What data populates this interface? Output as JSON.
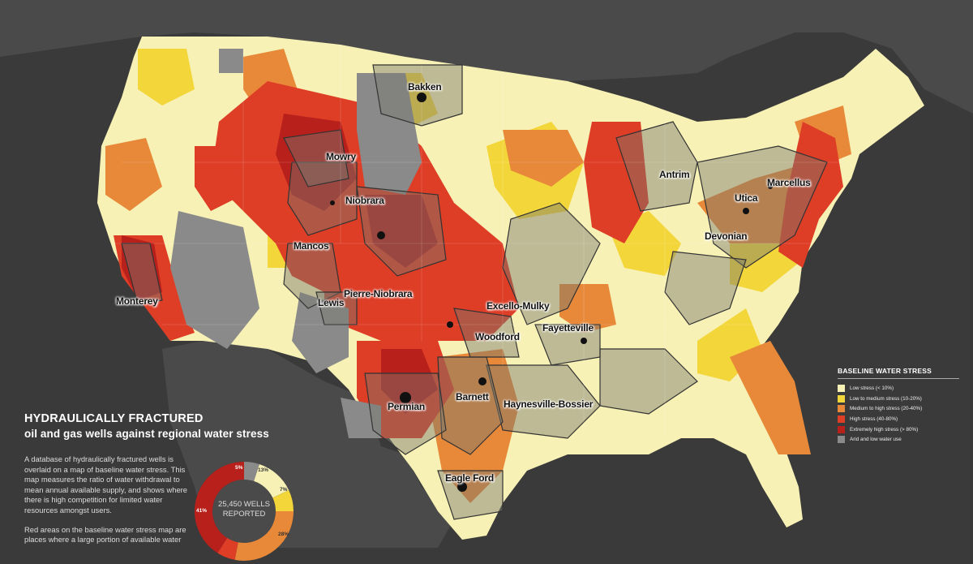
{
  "map": {
    "region": "Contiguous United States",
    "basins": [
      {
        "id": "bakken",
        "label": "Bakken"
      },
      {
        "id": "mowry",
        "label": "Mowry"
      },
      {
        "id": "niobrara",
        "label": "Niobrara"
      },
      {
        "id": "mancos",
        "label": "Mancos"
      },
      {
        "id": "pierre-niobrara",
        "label": "Pierre-Niobrara"
      },
      {
        "id": "lewis",
        "label": "Lewis"
      },
      {
        "id": "monterey",
        "label": "Monterey"
      },
      {
        "id": "excello-mulky",
        "label": "Excello-Mulky"
      },
      {
        "id": "woodford",
        "label": "Woodford"
      },
      {
        "id": "fayetteville",
        "label": "Fayetteville"
      },
      {
        "id": "barnett",
        "label": "Barnett"
      },
      {
        "id": "haynesville-bossier",
        "label": "Haynesville-Bossier"
      },
      {
        "id": "permian",
        "label": "Permian"
      },
      {
        "id": "eagle-ford",
        "label": "Eagle Ford"
      },
      {
        "id": "antrim",
        "label": "Antrim"
      },
      {
        "id": "utica",
        "label": "Utica"
      },
      {
        "id": "marcellus",
        "label": "Marcellus"
      },
      {
        "id": "devonian",
        "label": "Devonian"
      }
    ]
  },
  "legend": {
    "title": "BASELINE WATER STRESS",
    "items": [
      {
        "label": "Low stress (< 10%)",
        "color": "#f7f1b5"
      },
      {
        "label": "Low to medium stress (10-20%)",
        "color": "#f3d63a"
      },
      {
        "label": "Medium to high stress (20-40%)",
        "color": "#e8893a"
      },
      {
        "label": "High stress (40-80%)",
        "color": "#de3d26"
      },
      {
        "label": "Extremely high stress (> 80%)",
        "color": "#b8201c"
      },
      {
        "label": "Arid and low water use",
        "color": "#8a8a8a"
      }
    ]
  },
  "title": {
    "main": "HYDRAULICALLY FRACTURED",
    "sub": "oil and gas wells against regional water stress"
  },
  "description": {
    "p1": "A database of hydraulically fractured wells is overlaid on a map of baseline water stress. This map measures the ratio of water withdrawal to mean annual available supply, and shows where there is high competition for limited water resources amongst users.",
    "p2": "Red areas on the baseline water stress map are places where a large portion of available water"
  },
  "donut": {
    "center_line1": "25,450 WELLS",
    "center_line2": "REPORTED",
    "segments": [
      {
        "pct": "13%",
        "value": 13,
        "color": "#f7f1b5"
      },
      {
        "pct": "7%",
        "value": 7,
        "color": "#f3d63a"
      },
      {
        "pct": "28%",
        "value": 28,
        "color": "#e8893a"
      },
      {
        "pct": "",
        "value": 6,
        "color": "#de3d26"
      },
      {
        "pct": "41%",
        "value": 41,
        "color": "#b8201c"
      },
      {
        "pct": "5%",
        "value": 5,
        "color": "#8a8a8a"
      }
    ]
  }
}
